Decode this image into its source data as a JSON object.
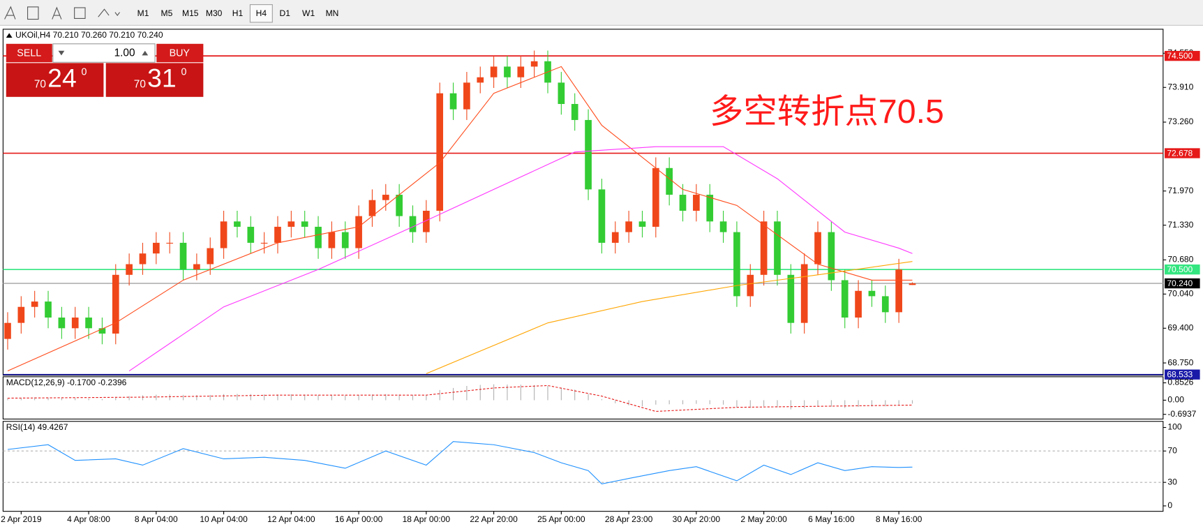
{
  "toolbar": {
    "timeframes": [
      "M1",
      "M5",
      "M15",
      "M30",
      "H1",
      "H4",
      "D1",
      "W1",
      "MN"
    ],
    "active_index": 5
  },
  "trade_panel": {
    "sell": "SELL",
    "buy": "BUY",
    "lot": "1.00",
    "sell_price": {
      "big": "70",
      "main": "24",
      "sup": "0"
    },
    "buy_price": {
      "big": "70",
      "main": "31",
      "sup": "0"
    }
  },
  "chart_data": [
    {
      "type": "candlestick",
      "title": "UKOil,H4  70.210 70.260 70.210 70.240",
      "annotation": "多空转折点70.5",
      "annotation_color": "#ff1a1a",
      "up_color": "#f0471a",
      "down_color": "#33cc33",
      "xlim": [
        -0.34,
        85.57
      ],
      "ylim": [
        68.52,
        75.0
      ],
      "yticks": [
        {
          "value": 74.55,
          "label": "74.550"
        },
        {
          "value": 73.91,
          "label": "73.910"
        },
        {
          "value": 73.26,
          "label": "73.260"
        },
        {
          "value": 71.97,
          "label": "71.970"
        },
        {
          "value": 71.33,
          "label": "71.330"
        },
        {
          "value": 70.68,
          "label": "70.680"
        },
        {
          "value": 70.04,
          "label": "70.040"
        },
        {
          "value": 69.4,
          "label": "69.400"
        },
        {
          "value": 68.75,
          "label": "68.750"
        }
      ],
      "levels": [
        {
          "value": 74.5,
          "label": "74.500",
          "color": "#e61919"
        },
        {
          "value": 72.678,
          "label": "72.678",
          "color": "#e61919"
        },
        {
          "value": 70.5,
          "label": "70.500",
          "color": "#33e680"
        },
        {
          "value": 70.24,
          "label": "70.240",
          "color": "#b0b0b0",
          "label_color": "#000000"
        },
        {
          "value": 68.533,
          "label": "68.533",
          "color": "#1a1aa8"
        }
      ],
      "x": [
        0,
        1,
        2,
        3,
        4,
        5,
        6,
        7,
        8,
        9,
        10,
        11,
        12,
        13,
        14,
        15,
        16,
        17,
        18,
        19,
        20,
        21,
        22,
        23,
        24,
        25,
        26,
        27,
        28,
        29,
        30,
        31,
        32,
        33,
        34,
        35,
        36,
        37,
        38,
        39,
        40,
        41,
        42,
        43,
        44,
        45,
        46,
        47,
        48,
        49,
        50,
        51,
        52,
        53,
        54,
        55,
        56,
        57,
        58,
        59,
        60,
        61,
        62,
        63,
        64,
        65,
        66,
        67
      ],
      "open": [
        69.2,
        69.5,
        69.8,
        69.9,
        69.6,
        69.4,
        69.6,
        69.4,
        69.3,
        70.4,
        70.6,
        70.8,
        71.0,
        71.0,
        70.5,
        70.6,
        70.9,
        71.4,
        71.3,
        71.0,
        71.0,
        71.3,
        71.4,
        71.3,
        70.9,
        71.2,
        70.9,
        71.5,
        71.8,
        71.9,
        71.5,
        71.2,
        71.6,
        73.8,
        73.5,
        74.0,
        74.1,
        74.3,
        74.1,
        74.3,
        74.4,
        74.0,
        73.6,
        73.3,
        72.0,
        71.0,
        71.2,
        71.4,
        71.3,
        72.4,
        71.9,
        71.6,
        71.9,
        71.4,
        71.2,
        70.0,
        70.4,
        71.4,
        70.4,
        69.5,
        70.6,
        71.2,
        70.3,
        69.6,
        70.1,
        70.0,
        69.7,
        70.21
      ],
      "high": [
        69.7,
        70.0,
        70.1,
        70.1,
        69.8,
        69.8,
        69.8,
        69.6,
        70.6,
        70.8,
        71.0,
        71.2,
        71.2,
        71.2,
        70.8,
        71.1,
        71.6,
        71.6,
        71.5,
        71.2,
        71.5,
        71.6,
        71.6,
        71.5,
        71.4,
        71.4,
        71.7,
        72.0,
        72.1,
        72.1,
        71.7,
        71.8,
        74.0,
        74.0,
        74.2,
        74.3,
        74.5,
        74.5,
        74.5,
        74.6,
        74.6,
        74.2,
        73.8,
        73.5,
        72.2,
        71.4,
        71.6,
        71.6,
        72.6,
        72.6,
        72.1,
        72.1,
        72.1,
        71.6,
        71.4,
        70.6,
        71.6,
        71.6,
        70.6,
        70.8,
        71.4,
        71.4,
        70.5,
        70.3,
        70.3,
        70.2,
        70.7,
        70.26
      ],
      "low": [
        69.0,
        69.3,
        69.6,
        69.4,
        69.2,
        69.2,
        69.2,
        69.1,
        69.1,
        70.2,
        70.4,
        70.6,
        70.8,
        70.3,
        70.3,
        70.4,
        70.7,
        71.1,
        70.8,
        70.8,
        70.8,
        71.1,
        71.1,
        70.7,
        70.7,
        70.7,
        70.7,
        71.3,
        71.6,
        71.3,
        71.0,
        71.0,
        71.4,
        73.3,
        73.3,
        73.8,
        73.9,
        73.9,
        73.9,
        74.1,
        73.8,
        73.4,
        73.1,
        71.8,
        70.8,
        70.8,
        71.0,
        71.1,
        71.1,
        71.7,
        71.4,
        71.4,
        71.2,
        71.0,
        69.8,
        69.8,
        70.2,
        70.2,
        69.3,
        69.3,
        70.4,
        70.1,
        69.4,
        69.4,
        69.8,
        69.5,
        69.5,
        70.21
      ],
      "close": [
        69.5,
        69.8,
        69.9,
        69.6,
        69.4,
        69.6,
        69.4,
        69.3,
        70.4,
        70.6,
        70.8,
        71.0,
        71.0,
        70.5,
        70.6,
        70.9,
        71.4,
        71.3,
        71.0,
        71.0,
        71.3,
        71.4,
        71.3,
        70.9,
        71.2,
        70.9,
        71.5,
        71.8,
        71.9,
        71.5,
        71.2,
        71.6,
        73.8,
        73.5,
        74.0,
        74.1,
        74.3,
        74.1,
        74.3,
        74.4,
        74.0,
        73.6,
        73.3,
        72.0,
        71.0,
        71.2,
        71.4,
        71.3,
        72.4,
        71.9,
        71.6,
        71.9,
        71.4,
        71.2,
        70.0,
        70.4,
        71.4,
        70.4,
        69.5,
        70.6,
        71.2,
        70.3,
        69.6,
        70.1,
        70.0,
        69.7,
        70.5,
        70.24
      ],
      "series": [
        {
          "color": "#ff4a1a",
          "x": [
            0,
            8,
            13,
            20,
            26,
            32,
            36,
            41,
            44,
            50,
            54,
            60,
            64,
            67
          ],
          "values": [
            68.6,
            69.5,
            70.3,
            71.0,
            71.3,
            72.5,
            73.8,
            74.3,
            73.2,
            72.0,
            71.7,
            70.6,
            70.3,
            70.3
          ]
        },
        {
          "color": "#ff33ff",
          "x": [
            9,
            16,
            23,
            30,
            36,
            42,
            48,
            53,
            57,
            62,
            66,
            67
          ],
          "values": [
            68.6,
            69.8,
            70.5,
            71.3,
            72.0,
            72.7,
            72.8,
            72.8,
            72.2,
            71.2,
            70.9,
            70.8
          ]
        },
        {
          "color": "#ffa500",
          "x": [
            31,
            40,
            47,
            54,
            60,
            67
          ],
          "values": [
            68.55,
            69.5,
            69.9,
            70.2,
            70.4,
            70.65
          ]
        }
      ]
    },
    {
      "type": "macd",
      "title": "MACD(12,26,9) -0.1700 -0.2396",
      "xlim": [
        -0.34,
        85.57
      ],
      "ylim": [
        -0.925,
        1.15
      ],
      "yticks": [
        0.8526,
        {
          "value": 0,
          "label": "0.00"
        },
        -0.6937
      ],
      "histogram_color": "#b0b0b0",
      "histogram": [
        0.1,
        0.12,
        0.14,
        0.12,
        0.1,
        0.1,
        0.08,
        0.06,
        0.15,
        0.2,
        0.24,
        0.27,
        0.28,
        0.26,
        0.25,
        0.26,
        0.3,
        0.31,
        0.3,
        0.28,
        0.28,
        0.29,
        0.28,
        0.25,
        0.25,
        0.23,
        0.25,
        0.28,
        0.3,
        0.28,
        0.25,
        0.26,
        0.5,
        0.6,
        0.7,
        0.75,
        0.78,
        0.77,
        0.76,
        0.74,
        0.7,
        0.62,
        0.52,
        0.3,
        0.05,
        -0.15,
        -0.25,
        -0.3,
        -0.22,
        -0.2,
        -0.2,
        -0.18,
        -0.2,
        -0.22,
        -0.35,
        -0.38,
        -0.3,
        -0.35,
        -0.45,
        -0.4,
        -0.3,
        -0.32,
        -0.38,
        -0.33,
        -0.3,
        -0.3,
        -0.22,
        -0.17
      ],
      "series": [
        {
          "color": "#e61919",
          "dash": true,
          "x": [
            0,
            10,
            20,
            31,
            36,
            40,
            44,
            48,
            54,
            60,
            67
          ],
          "values": [
            0.1,
            0.15,
            0.25,
            0.25,
            0.6,
            0.72,
            0.2,
            -0.55,
            -0.35,
            -0.3,
            -0.24
          ]
        }
      ]
    },
    {
      "type": "line",
      "title": "RSI(14) 49.4267",
      "xlim": [
        -0.34,
        85.57
      ],
      "ylim": [
        -6.9,
        107.8
      ],
      "yticks": [
        100,
        70,
        30,
        0
      ],
      "levels": [
        {
          "value": 70,
          "color": "#b0b0b0",
          "dash": true
        },
        {
          "value": 30,
          "color": "#b0b0b0",
          "dash": true
        }
      ],
      "xticks": [
        {
          "value": 1,
          "label": "2 Apr 2019"
        },
        {
          "value": 6,
          "label": "4 Apr 08:00"
        },
        {
          "value": 11,
          "label": "8 Apr 04:00"
        },
        {
          "value": 16,
          "label": "10 Apr 04:00"
        },
        {
          "value": 21,
          "label": "12 Apr 04:00"
        },
        {
          "value": 26,
          "label": "16 Apr 00:00"
        },
        {
          "value": 31,
          "label": "18 Apr 00:00"
        },
        {
          "value": 36,
          "label": "22 Apr 20:00"
        },
        {
          "value": 41,
          "label": "25 Apr 00:00"
        },
        {
          "value": 46,
          "label": "28 Apr 23:00"
        },
        {
          "value": 51,
          "label": "30 Apr 20:00"
        },
        {
          "value": 56,
          "label": "2 May 20:00"
        },
        {
          "value": 61,
          "label": "6 May 16:00"
        },
        {
          "value": 66,
          "label": "8 May 16:00"
        }
      ],
      "series": [
        {
          "color": "#1e90ff",
          "x": [
            0,
            3,
            5,
            8,
            10,
            13,
            16,
            19,
            22,
            25,
            28,
            31,
            33,
            36,
            39,
            41,
            43,
            44,
            46,
            49,
            51,
            54,
            56,
            58,
            60,
            62,
            64,
            66,
            67
          ],
          "values": [
            72,
            78,
            58,
            60,
            52,
            73,
            60,
            62,
            58,
            48,
            70,
            52,
            82,
            78,
            68,
            55,
            45,
            28,
            35,
            45,
            50,
            32,
            52,
            40,
            55,
            45,
            50,
            49,
            49.43
          ]
        }
      ]
    }
  ]
}
